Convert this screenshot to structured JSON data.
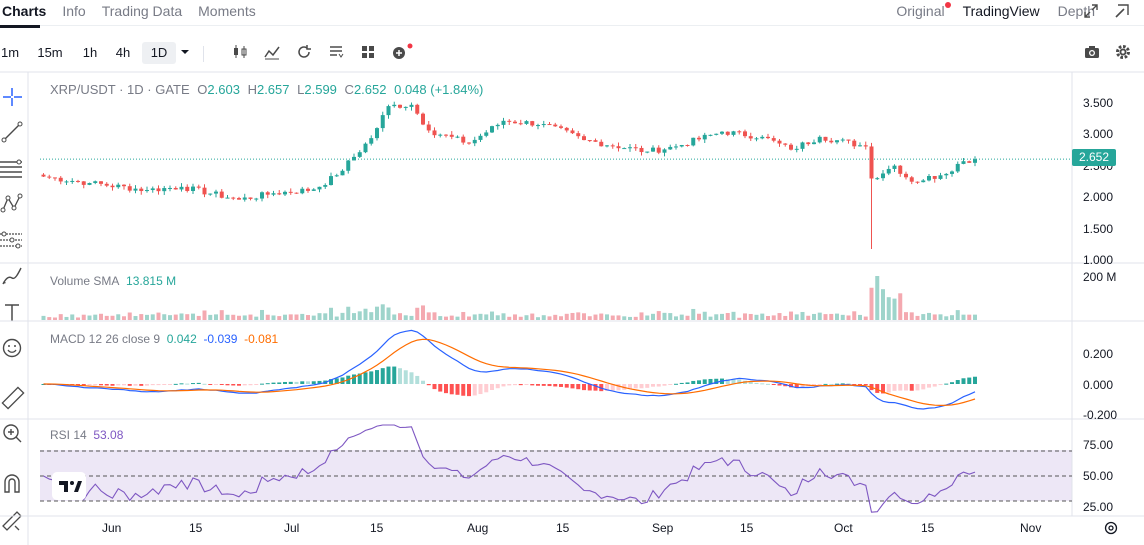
{
  "header": {
    "tabs": [
      {
        "label": "Charts",
        "active": true
      },
      {
        "label": "Info",
        "active": false
      },
      {
        "label": "Trading Data",
        "active": false
      },
      {
        "label": "Moments",
        "active": false
      }
    ],
    "views": [
      {
        "label": "Original",
        "active": false,
        "notification": true
      },
      {
        "label": "TradingView",
        "active": true
      },
      {
        "label": "Depth",
        "active": false
      }
    ],
    "icons": [
      "expand-icon",
      "popout-icon"
    ]
  },
  "toolbar": {
    "timeframes": [
      {
        "label": "1m",
        "active": false
      },
      {
        "label": "15m",
        "active": false
      },
      {
        "label": "1h",
        "active": false
      },
      {
        "label": "4h",
        "active": false
      },
      {
        "label": "1D",
        "active": true
      }
    ],
    "icons": [
      "candlestick-icon",
      "indicators-icon",
      "replay-icon",
      "compare-icon",
      "layout-icon",
      "add-indicator-icon",
      "screenshot-icon",
      "settings-icon"
    ]
  },
  "drawing_tools": [
    "crosshair-icon",
    "trendline-icon",
    "fib-icon",
    "pattern-icon",
    "gann-icon",
    "brush-icon",
    "text-icon",
    "emoji-icon",
    "ruler-icon",
    "zoom-icon",
    "magnet-icon",
    "lock-draw-icon"
  ],
  "chart": {
    "symbol": "XRP/USDT · 1D · GATE",
    "ohlc": {
      "o_label": "O",
      "o": "2.603",
      "h_label": "H",
      "h": "2.657",
      "l_label": "L",
      "l": "2.599",
      "c_label": "C",
      "c": "2.652",
      "change": "0.048 (+1.84%)"
    },
    "last_price": "2.652",
    "colors": {
      "up": "#26a69a",
      "down": "#ef5350",
      "vol_up": "#9ed4cb",
      "vol_down": "#f4a9b0",
      "macd": "#2962ff",
      "signal": "#ff6d00",
      "rsi": "#7e57c2"
    },
    "price_axis": [
      "3.500",
      "3.000",
      "2.500",
      "2.000",
      "1.500",
      "1.000"
    ],
    "volume": {
      "label": "Volume SMA",
      "value": "13.815 M",
      "axis": [
        "200 M"
      ]
    },
    "macd": {
      "label": "MACD 12 26 close 9",
      "v1": "0.042",
      "v2": "-0.039",
      "v3": "-0.081",
      "axis": [
        "0.200",
        "0.000",
        "-0.200"
      ]
    },
    "rsi": {
      "label": "RSI 14",
      "value": "53.08",
      "axis": [
        "75.00",
        "50.00",
        "25.00"
      ]
    },
    "time_axis": [
      "Jun",
      "15",
      "Jul",
      "15",
      "Aug",
      "15",
      "Sep",
      "15",
      "Oct",
      "15",
      "Nov"
    ]
  },
  "chart_data": {
    "type": "candlestick",
    "title": "XRP/USDT · 1D · GATE",
    "anchors": [
      {
        "date": "2025-05-19",
        "close": 2.38
      },
      {
        "date": "2025-05-27",
        "close": 2.28
      },
      {
        "date": "2025-06-06",
        "close": 2.17
      },
      {
        "date": "2025-06-12",
        "close": 2.22
      },
      {
        "date": "2025-06-22",
        "close": 2.02
      },
      {
        "date": "2025-06-28",
        "close": 2.12
      },
      {
        "date": "2025-07-05",
        "close": 2.18
      },
      {
        "date": "2025-07-09",
        "close": 2.4
      },
      {
        "date": "2025-07-15",
        "close": 2.98
      },
      {
        "date": "2025-07-18",
        "close": 3.48
      },
      {
        "date": "2025-07-22",
        "close": 3.5
      },
      {
        "date": "2025-07-25",
        "close": 3.1
      },
      {
        "date": "2025-08-01",
        "close": 2.9
      },
      {
        "date": "2025-08-07",
        "close": 3.25
      },
      {
        "date": "2025-08-14",
        "close": 3.2
      },
      {
        "date": "2025-08-21",
        "close": 2.95
      },
      {
        "date": "2025-09-01",
        "close": 2.77
      },
      {
        "date": "2025-09-06",
        "close": 2.85
      },
      {
        "date": "2025-09-14",
        "close": 3.08
      },
      {
        "date": "2025-09-21",
        "close": 3.0
      },
      {
        "date": "2025-09-26",
        "close": 2.8
      },
      {
        "date": "2025-10-01",
        "close": 3.0
      },
      {
        "date": "2025-10-09",
        "close": 2.85
      },
      {
        "date": "2025-10-10",
        "close": 2.35
      },
      {
        "date": "2025-10-14",
        "close": 2.55
      },
      {
        "date": "2025-10-17",
        "close": 2.3
      },
      {
        "date": "2025-10-22",
        "close": 2.4
      },
      {
        "date": "2025-10-26",
        "close": 2.62
      },
      {
        "date": "2025-10-28",
        "close": 2.652
      }
    ],
    "crash_low": {
      "date": "2025-10-10",
      "low": 1.25
    },
    "last_close": 2.652,
    "ylim": [
      1.0,
      3.7
    ],
    "volume_peak": {
      "date": "2025-10-11",
      "value": 205
    },
    "rsi_levels": [
      30,
      50,
      70
    ],
    "rsi_last": 53.08,
    "macd_last": {
      "macd": -0.039,
      "signal": -0.081,
      "hist": 0.042
    },
    "xlabel": "",
    "ylabel": ""
  }
}
